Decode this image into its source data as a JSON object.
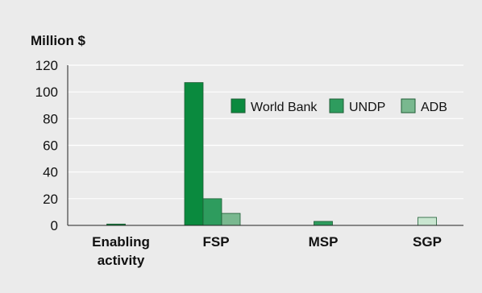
{
  "chart_data": {
    "type": "bar",
    "ylabel": "Million $",
    "ylim": [
      0,
      120
    ],
    "yticks": [
      0,
      20,
      40,
      60,
      80,
      100,
      120
    ],
    "categories": [
      [
        "Enabling",
        "activity"
      ],
      [
        "FSP"
      ],
      [
        "MSP"
      ],
      [
        "SGP"
      ]
    ],
    "series": [
      {
        "name": "World Bank",
        "color": "#0a8a3e",
        "values": [
          1,
          107,
          0,
          0
        ]
      },
      {
        "name": "UNDP",
        "color": "#2e9c5e",
        "values": [
          0,
          20,
          3,
          0
        ]
      },
      {
        "name": "ADB",
        "color": "#79b88f",
        "values": [
          0,
          9,
          0,
          0
        ]
      },
      {
        "series_label": "",
        "name": "",
        "color": "#c9e6d0",
        "values": [
          0,
          0,
          0,
          6
        ]
      }
    ],
    "grid": "horizontal",
    "legend_position": "top-right"
  }
}
